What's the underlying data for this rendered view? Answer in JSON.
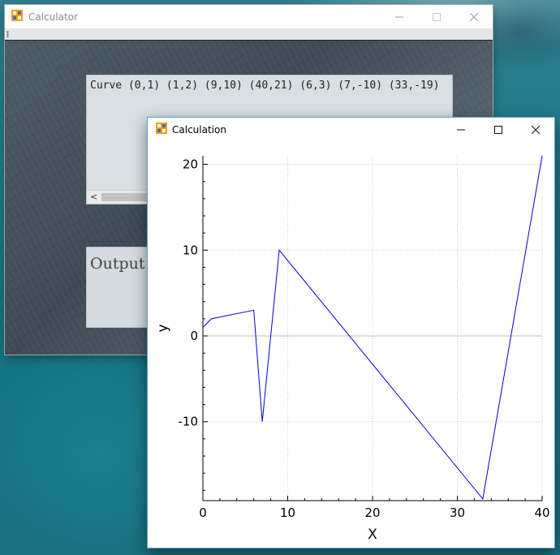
{
  "calculator": {
    "title": "Calculator",
    "expression": "Curve (0,1) (1,2) (9,10) (40,21) (6,3) (7,-10) (33,-19)",
    "output_label": "Output"
  },
  "calculation": {
    "title": "Calculation"
  },
  "colors": {
    "series": "#0000dd",
    "grid": "#c8c8c8",
    "zero_line": "#bdbdbd",
    "window_accent": "#5b9bd5"
  },
  "chart_data": {
    "type": "line",
    "xlabel": "X",
    "ylabel": "y",
    "xlim": [
      0,
      40
    ],
    "ylim": [
      -19.2,
      21
    ],
    "x_ticks": [
      0,
      10,
      20,
      30,
      40
    ],
    "y_ticks": [
      20,
      10,
      0,
      -10
    ],
    "grid": true,
    "series": [
      {
        "x": [
          0,
          1,
          6,
          7,
          9,
          33,
          40
        ],
        "y": [
          1,
          2,
          3,
          -10,
          10,
          -19,
          21
        ]
      }
    ]
  }
}
